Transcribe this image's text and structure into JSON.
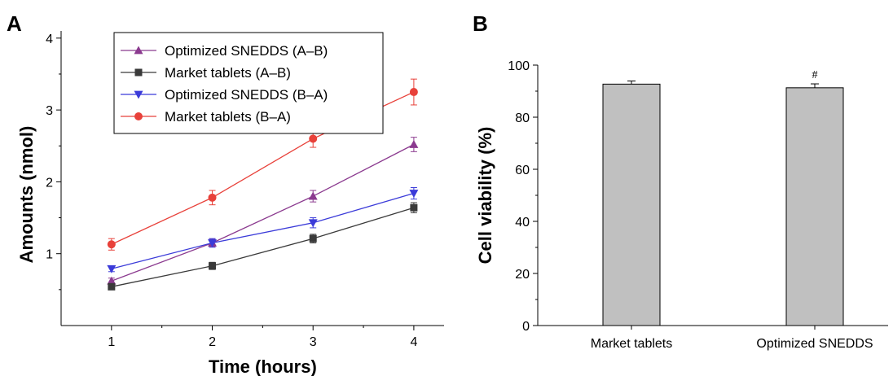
{
  "panel_labels": {
    "a": "A",
    "b": "B"
  },
  "chart_data": [
    {
      "type": "line",
      "panel": "A",
      "xlabel": "Time (hours)",
      "ylabel": "Amounts (nmol)",
      "xlim": [
        0.5,
        4.3
      ],
      "ylim": [
        0.0,
        4.1
      ],
      "x_ticks": [
        1,
        2,
        3,
        4
      ],
      "y_ticks": [
        1,
        2,
        3,
        4
      ],
      "legend_position": "top-center",
      "x": [
        1,
        2,
        3,
        4
      ],
      "series": [
        {
          "name": "Optimized SNEDDS (A–B)",
          "color": "#8b3a8f",
          "marker": "triangle-up",
          "values": [
            0.62,
            1.15,
            1.8,
            2.52
          ],
          "errors": [
            0.04,
            0.05,
            0.08,
            0.1
          ]
        },
        {
          "name": "Market tablets (A–B)",
          "color": "#3a3a3a",
          "marker": "square",
          "values": [
            0.54,
            0.83,
            1.21,
            1.64
          ],
          "errors": [
            0.03,
            0.05,
            0.06,
            0.07
          ]
        },
        {
          "name": "Optimized SNEDDS (B–A)",
          "color": "#3b3bd9",
          "marker": "triangle-down",
          "values": [
            0.79,
            1.15,
            1.43,
            1.84
          ],
          "errors": [
            0.04,
            0.06,
            0.07,
            0.08
          ]
        },
        {
          "name": "Market tablets (B–A)",
          "color": "#e8413a",
          "marker": "circle",
          "values": [
            1.13,
            1.78,
            2.6,
            3.25
          ],
          "errors": [
            0.08,
            0.1,
            0.12,
            0.18
          ]
        }
      ]
    },
    {
      "type": "bar",
      "panel": "B",
      "ylabel": "Cell viability (%)",
      "xlabel": "",
      "ylim": [
        0,
        100
      ],
      "y_ticks": [
        0,
        20,
        40,
        60,
        80,
        100
      ],
      "categories": [
        "Market tablets",
        "Optimized SNEDDS"
      ],
      "values": [
        92.7,
        91.3
      ],
      "errors": [
        1.2,
        1.5
      ],
      "annotations": [
        "",
        "#"
      ],
      "bar_color": "#c0c0c0"
    }
  ]
}
